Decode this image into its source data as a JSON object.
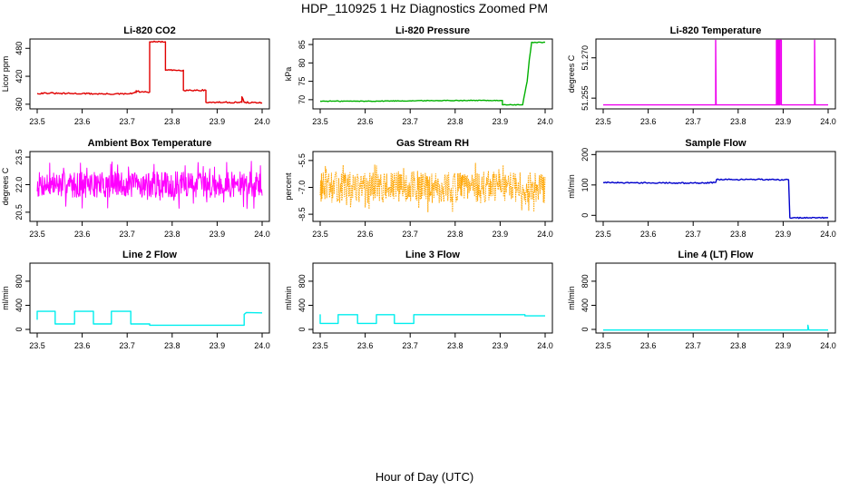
{
  "title": "HDP_110925  1 Hz Diagnostics Zoomed PM",
  "x_axis_title": "Hour of Day (UTC)",
  "chart_data": [
    {
      "type": "line",
      "title": "Li-820 CO2",
      "ylabel": "Licor ppm",
      "color": "#e00000",
      "xlim": [
        23.5,
        24.0
      ],
      "ylim": [
        350,
        500
      ],
      "x_ticks": [
        "23.5",
        "23.6",
        "23.7",
        "23.8",
        "23.9",
        "24.0"
      ],
      "y_ticks": [
        {
          "v": 360,
          "t": "360"
        },
        {
          "v": 420,
          "t": "420"
        },
        {
          "v": 480,
          "t": "480"
        }
      ],
      "noise": 1.5,
      "segments": [
        [
          23.5,
          383
        ],
        [
          23.52,
          384
        ],
        [
          23.55,
          383
        ],
        [
          23.6,
          383
        ],
        [
          23.65,
          382
        ],
        [
          23.7,
          382
        ],
        [
          23.72,
          385
        ],
        [
          23.72,
          389
        ],
        [
          23.73,
          386
        ],
        [
          23.745,
          386
        ],
        [
          23.75,
          386
        ],
        [
          23.75,
          494
        ],
        [
          23.785,
          494
        ],
        [
          23.785,
          433
        ],
        [
          23.825,
          433
        ],
        [
          23.825,
          390
        ],
        [
          23.875,
          390
        ],
        [
          23.875,
          364
        ],
        [
          23.955,
          364
        ],
        [
          23.955,
          376
        ],
        [
          23.96,
          364
        ],
        [
          24.0,
          363
        ]
      ]
    },
    {
      "type": "line",
      "title": "Li-820 Pressure",
      "ylabel": "kPa",
      "color": "#00b000",
      "xlim": [
        23.5,
        24.0
      ],
      "ylim": [
        67.5,
        86.5
      ],
      "x_ticks": [
        "23.5",
        "23.6",
        "23.7",
        "23.8",
        "23.9",
        "24.0"
      ],
      "y_ticks": [
        {
          "v": 70,
          "t": "70"
        },
        {
          "v": 75,
          "t": "75"
        },
        {
          "v": 80,
          "t": "80"
        },
        {
          "v": 85,
          "t": "85"
        }
      ],
      "noise": 0.1,
      "segments": [
        [
          23.5,
          69.6
        ],
        [
          23.6,
          69.6
        ],
        [
          23.7,
          69.7
        ],
        [
          23.8,
          69.8
        ],
        [
          23.905,
          69.8
        ],
        [
          23.905,
          68.6
        ],
        [
          23.95,
          68.6
        ],
        [
          23.96,
          75.0
        ],
        [
          23.965,
          81.0
        ],
        [
          23.97,
          85.6
        ],
        [
          24.0,
          85.6
        ]
      ]
    },
    {
      "type": "line",
      "title": "Li-820 Temperature",
      "ylabel": "degrees C",
      "color": "#ee00ee",
      "xlim": [
        23.5,
        24.0
      ],
      "ylim": [
        51.251,
        51.277
      ],
      "x_ticks": [
        "23.5",
        "23.6",
        "23.7",
        "23.8",
        "23.9",
        "24.0"
      ],
      "y_ticks": [
        {
          "v": 51.255,
          "t": "51.255"
        },
        {
          "v": 51.27,
          "t": "51.270"
        }
      ],
      "noise": 0,
      "segments": [
        [
          23.5,
          51.2525
        ],
        [
          23.75,
          51.2525
        ],
        [
          23.75,
          51.2765
        ],
        [
          23.751,
          51.2525
        ],
        [
          23.885,
          51.2525
        ],
        [
          23.885,
          51.2765
        ],
        [
          23.887,
          51.2765
        ],
        [
          23.887,
          51.2525
        ],
        [
          23.889,
          51.2525
        ],
        [
          23.889,
          51.2765
        ],
        [
          23.891,
          51.2765
        ],
        [
          23.891,
          51.2525
        ],
        [
          23.893,
          51.2525
        ],
        [
          23.893,
          51.2765
        ],
        [
          23.896,
          51.2765
        ],
        [
          23.896,
          51.2525
        ],
        [
          23.97,
          51.2525
        ],
        [
          23.97,
          51.2765
        ],
        [
          23.971,
          51.2525
        ],
        [
          24.0,
          51.2525
        ]
      ]
    },
    {
      "type": "line",
      "title": "Ambient Box Temperature",
      "ylabel": "degrees C",
      "color": "#ff00ff",
      "xlim": [
        23.5,
        24.0
      ],
      "ylim": [
        20.0,
        23.8
      ],
      "x_ticks": [
        "23.5",
        "23.6",
        "23.7",
        "23.8",
        "23.9",
        "24.0"
      ],
      "y_ticks": [
        {
          "v": 20.5,
          "t": "20.5"
        },
        {
          "v": 22.0,
          "t": "22.0"
        },
        {
          "v": 23.5,
          "t": "23.5"
        }
      ],
      "band": {
        "center": 22.0,
        "halfwidth": 0.7,
        "spikes": 1.3,
        "points": 520,
        "seed": 7
      }
    },
    {
      "type": "line",
      "title": "Gas Stream RH",
      "ylabel": "percent",
      "color": "#ffa500",
      "xlim": [
        23.5,
        24.0
      ],
      "ylim": [
        -8.9,
        -5.0
      ],
      "x_ticks": [
        "23.5",
        "23.6",
        "23.7",
        "23.8",
        "23.9",
        "24.0"
      ],
      "y_ticks": [
        {
          "v": -8.5,
          "t": "-8.5"
        },
        {
          "v": -7.0,
          "t": "-7.0"
        },
        {
          "v": -5.5,
          "t": "-5.5"
        }
      ],
      "band": {
        "center": -7.0,
        "halfwidth": 0.85,
        "spikes": 1.4,
        "points": 520,
        "seed": 13
      },
      "dotted": true
    },
    {
      "type": "line",
      "title": "Sample Flow",
      "ylabel": "ml/min",
      "color": "#0000cc",
      "xlim": [
        23.5,
        24.0
      ],
      "ylim": [
        -20,
        210
      ],
      "x_ticks": [
        "23.5",
        "23.6",
        "23.7",
        "23.8",
        "23.9",
        "24.0"
      ],
      "y_ticks": [
        {
          "v": 0,
          "t": "0"
        },
        {
          "v": 100,
          "t": "100"
        },
        {
          "v": 200,
          "t": "200"
        }
      ],
      "noise": 2,
      "segments": [
        [
          23.5,
          108
        ],
        [
          23.6,
          107
        ],
        [
          23.7,
          106
        ],
        [
          23.75,
          108
        ],
        [
          23.752,
          118
        ],
        [
          23.85,
          118
        ],
        [
          23.912,
          117
        ],
        [
          23.915,
          -8
        ],
        [
          24.0,
          -8
        ]
      ]
    },
    {
      "type": "line",
      "title": "Line 2 Flow",
      "ylabel": "ml/min",
      "color": "#00eeee",
      "xlim": [
        23.5,
        24.0
      ],
      "ylim": [
        -60,
        1100
      ],
      "x_ticks": [
        "23.5",
        "23.6",
        "23.7",
        "23.8",
        "23.9",
        "24.0"
      ],
      "y_ticks": [
        {
          "v": 0,
          "t": "0"
        },
        {
          "v": 400,
          "t": "400"
        },
        {
          "v": 800,
          "t": "800"
        }
      ],
      "noise": 0,
      "segments": [
        [
          23.5,
          160
        ],
        [
          23.5,
          300
        ],
        [
          23.54,
          300
        ],
        [
          23.54,
          90
        ],
        [
          23.583,
          90
        ],
        [
          23.583,
          300
        ],
        [
          23.625,
          300
        ],
        [
          23.625,
          90
        ],
        [
          23.665,
          90
        ],
        [
          23.665,
          300
        ],
        [
          23.708,
          300
        ],
        [
          23.708,
          90
        ],
        [
          23.75,
          90
        ],
        [
          23.75,
          70
        ],
        [
          23.96,
          70
        ],
        [
          23.96,
          250
        ],
        [
          23.965,
          280
        ],
        [
          24.0,
          275
        ]
      ]
    },
    {
      "type": "line",
      "title": "Line 3 Flow",
      "ylabel": "ml/min",
      "color": "#00eeee",
      "xlim": [
        23.5,
        24.0
      ],
      "ylim": [
        -60,
        1100
      ],
      "x_ticks": [
        "23.5",
        "23.6",
        "23.7",
        "23.8",
        "23.9",
        "24.0"
      ],
      "y_ticks": [
        {
          "v": 0,
          "t": "0"
        },
        {
          "v": 400,
          "t": "400"
        },
        {
          "v": 800,
          "t": "800"
        }
      ],
      "noise": 0,
      "segments": [
        [
          23.5,
          250
        ],
        [
          23.5,
          100
        ],
        [
          23.54,
          100
        ],
        [
          23.54,
          245
        ],
        [
          23.583,
          245
        ],
        [
          23.583,
          100
        ],
        [
          23.625,
          100
        ],
        [
          23.625,
          245
        ],
        [
          23.665,
          245
        ],
        [
          23.665,
          100
        ],
        [
          23.708,
          100
        ],
        [
          23.708,
          245
        ],
        [
          23.955,
          245
        ],
        [
          23.955,
          225
        ],
        [
          24.0,
          225
        ]
      ]
    },
    {
      "type": "line",
      "title": "Line 4 (LT) Flow",
      "ylabel": "ml/min",
      "color": "#00eeee",
      "xlim": [
        23.5,
        24.0
      ],
      "ylim": [
        -60,
        1100
      ],
      "x_ticks": [
        "23.5",
        "23.6",
        "23.7",
        "23.8",
        "23.9",
        "24.0"
      ],
      "y_ticks": [
        {
          "v": 0,
          "t": "0"
        },
        {
          "v": 400,
          "t": "400"
        },
        {
          "v": 800,
          "t": "800"
        }
      ],
      "noise": 0,
      "segments": [
        [
          23.5,
          -10
        ],
        [
          23.955,
          -10
        ],
        [
          23.955,
          70
        ],
        [
          23.957,
          -10
        ],
        [
          24.0,
          -10
        ]
      ]
    }
  ]
}
